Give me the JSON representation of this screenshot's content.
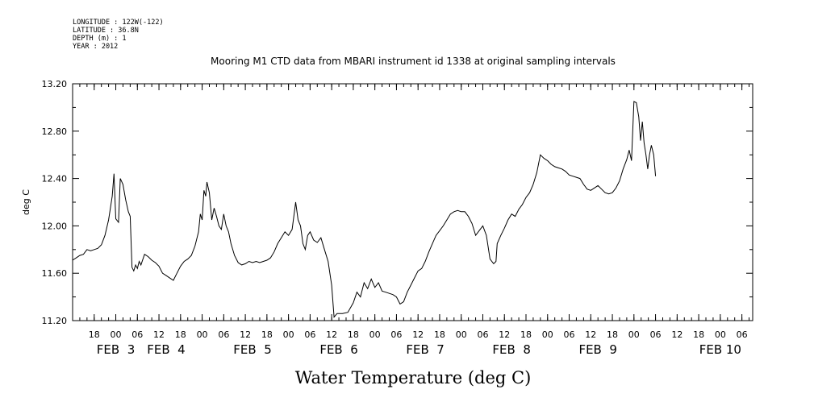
{
  "header": {
    "longitude": "LONGITUDE : 122W(-122)",
    "latitude": "LATITUDE : 36.8N",
    "depth": "DEPTH (m) : 1",
    "year": "YEAR : 2012"
  },
  "chart_data": {
    "type": "line",
    "title": "Mooring M1 CTD data from MBARI instrument id 1338 at original sampling intervals",
    "xlabel": "Water Temperature (deg C)",
    "ylabel": "deg C",
    "ylim": [
      11.2,
      13.2
    ],
    "xlim_hours_range": "2012-02-02 12:00 to 2012-02-10 09:00",
    "y_ticks": [
      "11.20",
      "11.60",
      "12.00",
      "12.40",
      "12.80",
      "13.20"
    ],
    "x_hour_ticks": [
      {
        "hour": "18",
        "t": "2012-02-02 18:00"
      },
      {
        "hour": "00",
        "t": "2012-02-03 00:00"
      },
      {
        "hour": "06",
        "t": "2012-02-03 06:00"
      },
      {
        "hour": "12",
        "t": "2012-02-03 12:00"
      },
      {
        "hour": "18",
        "t": "2012-02-03 18:00"
      },
      {
        "hour": "00",
        "t": "2012-02-04 00:00"
      },
      {
        "hour": "06",
        "t": "2012-02-04 06:00"
      },
      {
        "hour": "12",
        "t": "2012-02-04 12:00"
      },
      {
        "hour": "18",
        "t": "2012-02-04 18:00"
      },
      {
        "hour": "00",
        "t": "2012-02-05 00:00"
      },
      {
        "hour": "06",
        "t": "2012-02-05 06:00"
      },
      {
        "hour": "12",
        "t": "2012-02-05 12:00"
      },
      {
        "hour": "18",
        "t": "2012-02-05 18:00"
      },
      {
        "hour": "00",
        "t": "2012-02-06 00:00"
      },
      {
        "hour": "06",
        "t": "2012-02-06 06:00"
      },
      {
        "hour": "12",
        "t": "2012-02-06 12:00"
      },
      {
        "hour": "18",
        "t": "2012-02-06 18:00"
      },
      {
        "hour": "00",
        "t": "2012-02-07 00:00"
      },
      {
        "hour": "06",
        "t": "2012-02-07 06:00"
      },
      {
        "hour": "12",
        "t": "2012-02-07 12:00"
      },
      {
        "hour": "18",
        "t": "2012-02-07 18:00"
      },
      {
        "hour": "00",
        "t": "2012-02-08 00:00"
      },
      {
        "hour": "06",
        "t": "2012-02-08 06:00"
      },
      {
        "hour": "12",
        "t": "2012-02-08 12:00"
      },
      {
        "hour": "18",
        "t": "2012-02-08 18:00"
      },
      {
        "hour": "00",
        "t": "2012-02-09 00:00"
      },
      {
        "hour": "06",
        "t": "2012-02-09 06:00"
      },
      {
        "hour": "12",
        "t": "2012-02-09 12:00"
      },
      {
        "hour": "18",
        "t": "2012-02-09 18:00"
      },
      {
        "hour": "00",
        "t": "2012-02-10 00:00"
      },
      {
        "hour": "06",
        "t": "2012-02-10 06:00"
      }
    ],
    "x_day_labels": [
      {
        "label": "FEB  3",
        "t": "2012-02-03 00:00"
      },
      {
        "label": "FEB  4",
        "t": "2012-02-03 14:00"
      },
      {
        "label": "FEB  5",
        "t": "2012-02-04 14:00"
      },
      {
        "label": "FEB  6",
        "t": "2012-02-05 14:00"
      },
      {
        "label": "FEB  7",
        "t": "2012-02-06 14:00"
      },
      {
        "label": "FEB  8",
        "t": "2012-02-07 14:00"
      },
      {
        "label": "FEB  9",
        "t": "2012-02-08 14:00"
      },
      {
        "label": "FEB 10",
        "t": "2012-02-10 00:00"
      }
    ],
    "series": [
      {
        "points": [
          [
            "2012-02-02 12:00",
            11.71
          ],
          [
            "2012-02-02 13:00",
            11.73
          ],
          [
            "2012-02-02 14:00",
            11.75
          ],
          [
            "2012-02-02 15:00",
            11.76
          ],
          [
            "2012-02-02 16:00",
            11.8
          ],
          [
            "2012-02-02 17:00",
            11.79
          ],
          [
            "2012-02-02 18:00",
            11.8
          ],
          [
            "2012-02-02 19:00",
            11.81
          ],
          [
            "2012-02-02 20:00",
            11.84
          ],
          [
            "2012-02-02 21:00",
            11.92
          ],
          [
            "2012-02-02 22:00",
            12.05
          ],
          [
            "2012-02-02 23:00",
            12.25
          ],
          [
            "2012-02-02 23:30",
            12.44
          ],
          [
            "2012-02-03 00:00",
            12.06
          ],
          [
            "2012-02-03 00:45",
            12.03
          ],
          [
            "2012-02-03 01:15",
            12.4
          ],
          [
            "2012-02-03 02:00",
            12.35
          ],
          [
            "2012-02-03 02:45",
            12.22
          ],
          [
            "2012-02-03 03:30",
            12.12
          ],
          [
            "2012-02-03 04:00",
            12.08
          ],
          [
            "2012-02-03 04:30",
            11.65
          ],
          [
            "2012-02-03 05:00",
            11.62
          ],
          [
            "2012-02-03 05:30",
            11.67
          ],
          [
            "2012-02-03 06:00",
            11.64
          ],
          [
            "2012-02-03 06:30",
            11.7
          ],
          [
            "2012-02-03 07:00",
            11.67
          ],
          [
            "2012-02-03 08:00",
            11.76
          ],
          [
            "2012-02-03 09:00",
            11.74
          ],
          [
            "2012-02-03 10:00",
            11.71
          ],
          [
            "2012-02-03 11:00",
            11.69
          ],
          [
            "2012-02-03 12:00",
            11.66
          ],
          [
            "2012-02-03 13:00",
            11.6
          ],
          [
            "2012-02-03 14:00",
            11.58
          ],
          [
            "2012-02-03 15:00",
            11.56
          ],
          [
            "2012-02-03 16:00",
            11.54
          ],
          [
            "2012-02-03 17:00",
            11.6
          ],
          [
            "2012-02-03 18:00",
            11.66
          ],
          [
            "2012-02-03 19:00",
            11.7
          ],
          [
            "2012-02-03 20:00",
            11.72
          ],
          [
            "2012-02-03 21:00",
            11.75
          ],
          [
            "2012-02-03 22:00",
            11.83
          ],
          [
            "2012-02-03 23:00",
            11.95
          ],
          [
            "2012-02-03 23:30",
            12.1
          ],
          [
            "2012-02-04 00:00",
            12.05
          ],
          [
            "2012-02-04 00:30",
            12.3
          ],
          [
            "2012-02-04 01:00",
            12.25
          ],
          [
            "2012-02-04 01:20",
            12.37
          ],
          [
            "2012-02-04 02:00",
            12.28
          ],
          [
            "2012-02-04 02:40",
            12.05
          ],
          [
            "2012-02-04 03:20",
            12.15
          ],
          [
            "2012-02-04 04:00",
            12.08
          ],
          [
            "2012-02-04 04:40",
            12.0
          ],
          [
            "2012-02-04 05:20",
            11.97
          ],
          [
            "2012-02-04 06:00",
            12.1
          ],
          [
            "2012-02-04 06:40",
            12.0
          ],
          [
            "2012-02-04 07:20",
            11.95
          ],
          [
            "2012-02-04 08:00",
            11.85
          ],
          [
            "2012-02-04 09:00",
            11.75
          ],
          [
            "2012-02-04 10:00",
            11.69
          ],
          [
            "2012-02-04 11:00",
            11.67
          ],
          [
            "2012-02-04 12:00",
            11.68
          ],
          [
            "2012-02-04 13:00",
            11.7
          ],
          [
            "2012-02-04 14:00",
            11.69
          ],
          [
            "2012-02-04 15:00",
            11.7
          ],
          [
            "2012-02-04 16:00",
            11.69
          ],
          [
            "2012-02-04 17:00",
            11.7
          ],
          [
            "2012-02-04 18:00",
            11.71
          ],
          [
            "2012-02-04 19:00",
            11.73
          ],
          [
            "2012-02-04 20:00",
            11.78
          ],
          [
            "2012-02-04 21:00",
            11.85
          ],
          [
            "2012-02-04 22:00",
            11.9
          ],
          [
            "2012-02-04 23:00",
            11.95
          ],
          [
            "2012-02-05 00:00",
            11.92
          ],
          [
            "2012-02-05 01:00",
            11.97
          ],
          [
            "2012-02-05 02:00",
            12.2
          ],
          [
            "2012-02-05 02:40",
            12.05
          ],
          [
            "2012-02-05 03:20",
            12.0
          ],
          [
            "2012-02-05 04:00",
            11.85
          ],
          [
            "2012-02-05 04:40",
            11.8
          ],
          [
            "2012-02-05 05:20",
            11.92
          ],
          [
            "2012-02-05 06:00",
            11.95
          ],
          [
            "2012-02-05 07:00",
            11.88
          ],
          [
            "2012-02-05 08:00",
            11.86
          ],
          [
            "2012-02-05 09:00",
            11.9
          ],
          [
            "2012-02-05 10:00",
            11.8
          ],
          [
            "2012-02-05 11:00",
            11.7
          ],
          [
            "2012-02-05 12:00",
            11.5
          ],
          [
            "2012-02-05 12:40",
            11.23
          ],
          [
            "2012-02-05 13:30",
            11.26
          ],
          [
            "2012-02-05 15:00",
            11.26
          ],
          [
            "2012-02-05 16:30",
            11.27
          ],
          [
            "2012-02-05 18:00",
            11.35
          ],
          [
            "2012-02-05 19:00",
            11.44
          ],
          [
            "2012-02-05 20:00",
            11.4
          ],
          [
            "2012-02-05 21:00",
            11.52
          ],
          [
            "2012-02-05 22:00",
            11.47
          ],
          [
            "2012-02-05 23:00",
            11.55
          ],
          [
            "2012-02-06 00:00",
            11.48
          ],
          [
            "2012-02-06 01:00",
            11.52
          ],
          [
            "2012-02-06 02:00",
            11.45
          ],
          [
            "2012-02-06 03:00",
            11.44
          ],
          [
            "2012-02-06 04:00",
            11.43
          ],
          [
            "2012-02-06 05:00",
            11.42
          ],
          [
            "2012-02-06 06:00",
            11.4
          ],
          [
            "2012-02-06 07:00",
            11.34
          ],
          [
            "2012-02-06 08:00",
            11.36
          ],
          [
            "2012-02-06 09:00",
            11.44
          ],
          [
            "2012-02-06 10:00",
            11.5
          ],
          [
            "2012-02-06 11:00",
            11.56
          ],
          [
            "2012-02-06 12:00",
            11.62
          ],
          [
            "2012-02-06 13:00",
            11.64
          ],
          [
            "2012-02-06 14:00",
            11.7
          ],
          [
            "2012-02-06 15:00",
            11.78
          ],
          [
            "2012-02-06 16:00",
            11.85
          ],
          [
            "2012-02-06 17:00",
            11.92
          ],
          [
            "2012-02-06 18:00",
            11.96
          ],
          [
            "2012-02-06 19:00",
            12.0
          ],
          [
            "2012-02-06 20:00",
            12.05
          ],
          [
            "2012-02-06 21:00",
            12.1
          ],
          [
            "2012-02-06 22:00",
            12.12
          ],
          [
            "2012-02-06 23:00",
            12.13
          ],
          [
            "2012-02-07 00:00",
            12.12
          ],
          [
            "2012-02-07 01:00",
            12.12
          ],
          [
            "2012-02-07 02:00",
            12.08
          ],
          [
            "2012-02-07 03:00",
            12.02
          ],
          [
            "2012-02-07 04:00",
            11.92
          ],
          [
            "2012-02-07 05:00",
            11.96
          ],
          [
            "2012-02-07 06:00",
            12.0
          ],
          [
            "2012-02-07 07:00",
            11.92
          ],
          [
            "2012-02-07 08:00",
            11.72
          ],
          [
            "2012-02-07 09:00",
            11.68
          ],
          [
            "2012-02-07 09:40",
            11.7
          ],
          [
            "2012-02-07 10:00",
            11.85
          ],
          [
            "2012-02-07 11:00",
            11.92
          ],
          [
            "2012-02-07 12:00",
            11.98
          ],
          [
            "2012-02-07 13:00",
            12.05
          ],
          [
            "2012-02-07 14:00",
            12.1
          ],
          [
            "2012-02-07 15:00",
            12.08
          ],
          [
            "2012-02-07 16:00",
            12.14
          ],
          [
            "2012-02-07 17:00",
            12.18
          ],
          [
            "2012-02-07 18:00",
            12.24
          ],
          [
            "2012-02-07 19:00",
            12.28
          ],
          [
            "2012-02-07 20:00",
            12.35
          ],
          [
            "2012-02-07 21:00",
            12.45
          ],
          [
            "2012-02-07 22:00",
            12.6
          ],
          [
            "2012-02-07 23:00",
            12.57
          ],
          [
            "2012-02-08 00:00",
            12.55
          ],
          [
            "2012-02-08 01:00",
            12.52
          ],
          [
            "2012-02-08 02:00",
            12.5
          ],
          [
            "2012-02-08 03:00",
            12.49
          ],
          [
            "2012-02-08 04:00",
            12.48
          ],
          [
            "2012-02-08 05:00",
            12.46
          ],
          [
            "2012-02-08 06:00",
            12.43
          ],
          [
            "2012-02-08 07:00",
            12.42
          ],
          [
            "2012-02-08 08:00",
            12.41
          ],
          [
            "2012-02-08 09:00",
            12.4
          ],
          [
            "2012-02-08 10:00",
            12.35
          ],
          [
            "2012-02-08 11:00",
            12.31
          ],
          [
            "2012-02-08 12:00",
            12.3
          ],
          [
            "2012-02-08 13:00",
            12.32
          ],
          [
            "2012-02-08 14:00",
            12.34
          ],
          [
            "2012-02-08 15:00",
            12.31
          ],
          [
            "2012-02-08 16:00",
            12.28
          ],
          [
            "2012-02-08 17:00",
            12.27
          ],
          [
            "2012-02-08 18:00",
            12.28
          ],
          [
            "2012-02-08 19:00",
            12.32
          ],
          [
            "2012-02-08 20:00",
            12.38
          ],
          [
            "2012-02-08 21:00",
            12.48
          ],
          [
            "2012-02-08 22:00",
            12.56
          ],
          [
            "2012-02-08 22:40",
            12.64
          ],
          [
            "2012-02-08 23:20",
            12.55
          ],
          [
            "2012-02-09 00:00",
            13.05
          ],
          [
            "2012-02-09 00:40",
            13.04
          ],
          [
            "2012-02-09 01:20",
            12.92
          ],
          [
            "2012-02-09 01:50",
            12.72
          ],
          [
            "2012-02-09 02:20",
            12.88
          ],
          [
            "2012-02-09 02:50",
            12.7
          ],
          [
            "2012-02-09 03:20",
            12.6
          ],
          [
            "2012-02-09 03:50",
            12.48
          ],
          [
            "2012-02-09 04:20",
            12.6
          ],
          [
            "2012-02-09 04:50",
            12.68
          ],
          [
            "2012-02-09 05:30",
            12.6
          ],
          [
            "2012-02-09 06:00",
            12.42
          ]
        ]
      }
    ]
  }
}
